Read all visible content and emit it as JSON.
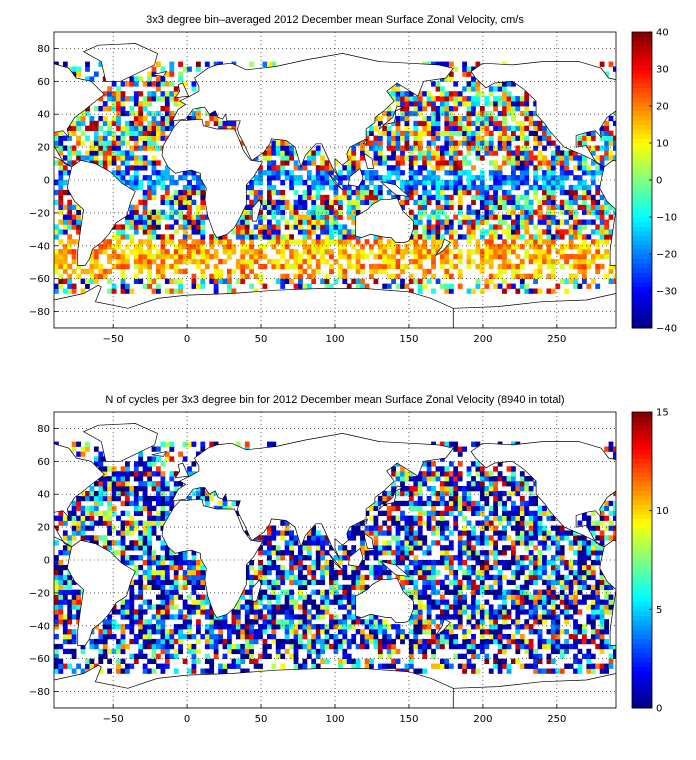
{
  "panels": [
    {
      "id": "velocity",
      "title": "3x3 degree bin–averaged 2012 December mean Surface Zonal Velocity, cm/s",
      "colorbar": {
        "min": -40,
        "max": 40,
        "ticks": [
          "40",
          "30",
          "20",
          "10",
          "0",
          "−10",
          "−20",
          "−30",
          "−40"
        ]
      },
      "seed": 11
    },
    {
      "id": "counts",
      "title": "N of cycles per 3x3 degree bin for 2012 December mean Surface Zonal Velocity (8940 in total)",
      "colorbar": {
        "min": 0,
        "max": 15,
        "ticks": [
          "15",
          "10",
          "5",
          "0"
        ]
      },
      "seed": 37
    }
  ],
  "axes": {
    "x_ticks": [
      "−50",
      "0",
      "50",
      "100",
      "150",
      "200",
      "250"
    ],
    "y_ticks": [
      "80",
      "60",
      "40",
      "20",
      "0",
      "−20",
      "−40",
      "−60",
      "−80"
    ],
    "x_range": [
      -90,
      290
    ],
    "y_range": [
      -90,
      90
    ],
    "grid": "dotted"
  },
  "colormap": "jet"
}
